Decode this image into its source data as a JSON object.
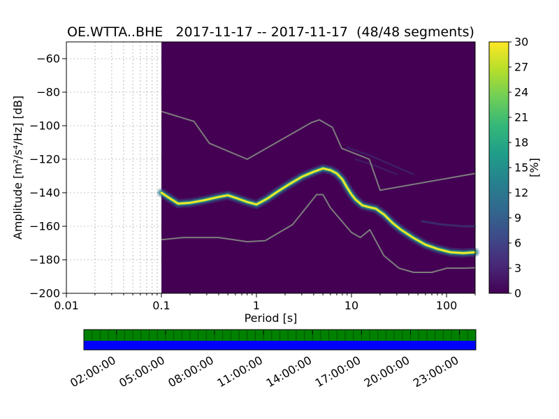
{
  "chart_data": {
    "type": "heatmap",
    "title": "OE.WTTA..BHE   2017-11-17 -- 2017-11-17  (48/48 segments)",
    "xlabel": "Period [s]",
    "ylabel": "Amplitude [m²/s⁴/Hz] [dB]",
    "x_scale": "log",
    "xlim": [
      0.01,
      200
    ],
    "ylim": [
      -200,
      -50
    ],
    "x_ticks": [
      {
        "v": 0.01,
        "label": "0.01"
      },
      {
        "v": 0.1,
        "label": "0.1"
      },
      {
        "v": 1,
        "label": "1"
      },
      {
        "v": 10,
        "label": "10"
      },
      {
        "v": 100,
        "label": "100"
      }
    ],
    "y_ticks": [
      {
        "v": -60,
        "label": "−60"
      },
      {
        "v": -80,
        "label": "−80"
      },
      {
        "v": -100,
        "label": "−100"
      },
      {
        "v": -120,
        "label": "−120"
      },
      {
        "v": -140,
        "label": "−140"
      },
      {
        "v": -160,
        "label": "−160"
      },
      {
        "v": -180,
        "label": "−180"
      },
      {
        "v": -200,
        "label": "−200"
      }
    ],
    "grid": "dashed",
    "data_start_period": 0.1,
    "zero_percent_color": "#440154",
    "noise_model_color": "#7d7d7d",
    "colorbar": {
      "label": "[%]",
      "min": 0,
      "max": 30,
      "ticks": [
        0,
        3,
        6,
        9,
        12,
        15,
        18,
        21,
        24,
        27,
        30
      ],
      "colormap": "viridis",
      "gradient": [
        "#440154",
        "#482878",
        "#3e4a89",
        "#31688e",
        "#26828e",
        "#1f9e89",
        "#35b779",
        "#6ece58",
        "#b5de2b",
        "#fde725"
      ]
    },
    "noise_models": {
      "high": {
        "periods": [
          0.1,
          0.22,
          0.32,
          0.8,
          3.8,
          4.6,
          6.3,
          7.9,
          15.4,
          20,
          200
        ],
        "db": [
          -91.5,
          -97.4,
          -110.5,
          -120.0,
          -98.1,
          -96.5,
          -101.0,
          -113.5,
          -120.0,
          -138.5,
          -128.5
        ]
      },
      "low": {
        "periods": [
          0.1,
          0.17,
          0.4,
          0.8,
          1.24,
          2.4,
          4.3,
          5.0,
          6.0,
          10,
          12.4,
          15.6,
          21.9,
          31.6,
          45,
          70,
          101,
          154,
          200
        ],
        "db": [
          -168.0,
          -166.7,
          -166.7,
          -169.2,
          -168.6,
          -159.0,
          -141.1,
          -141.1,
          -149.0,
          -163.7,
          -166.7,
          -162.1,
          -177.5,
          -185.0,
          -187.5,
          -187.5,
          -185.0,
          -185.0,
          -184.8
        ]
      }
    },
    "psd_mode_ridge": {
      "periods": [
        0.1,
        0.12,
        0.15,
        0.2,
        0.28,
        0.4,
        0.5,
        0.6,
        0.8,
        1.0,
        1.3,
        1.7,
        2.2,
        3.0,
        4.0,
        5.0,
        6.0,
        7.0,
        8.0,
        9.0,
        10,
        11,
        13,
        15,
        18,
        22,
        27,
        33,
        45,
        60,
        80,
        110,
        150,
        200
      ],
      "db": [
        -140,
        -143,
        -146.5,
        -146,
        -144.5,
        -142.5,
        -141.5,
        -143,
        -145.5,
        -147,
        -143.5,
        -139,
        -135,
        -130.5,
        -127.5,
        -125.5,
        -126.5,
        -128.5,
        -132,
        -137,
        -141,
        -144,
        -147.5,
        -148.5,
        -149.5,
        -153,
        -158,
        -162,
        -167,
        -171,
        -173.5,
        -175.5,
        -176,
        -175.5
      ]
    },
    "faint_traces": [
      {
        "periods": [
          9,
          16,
          28,
          45
        ],
        "db": [
          -113,
          -118,
          -124,
          -129
        ]
      },
      {
        "periods": [
          11,
          18,
          30
        ],
        "db": [
          -120,
          -124,
          -129
        ]
      },
      {
        "periods": [
          55,
          90,
          150,
          200
        ],
        "db": [
          -157,
          -159,
          -160,
          -160
        ]
      }
    ],
    "availability": {
      "segments": 48,
      "hours_span": 24,
      "coverage_color": "#008000",
      "extent_color": "#0000ff",
      "time_ticks": [
        {
          "hour": 2,
          "label": "02:00:00"
        },
        {
          "hour": 5,
          "label": "05:00:00"
        },
        {
          "hour": 8,
          "label": "08:00:00"
        },
        {
          "hour": 11,
          "label": "11:00:00"
        },
        {
          "hour": 14,
          "label": "14:00:00"
        },
        {
          "hour": 17,
          "label": "17:00:00"
        },
        {
          "hour": 20,
          "label": "20:00:00"
        },
        {
          "hour": 23,
          "label": "23:00:00"
        }
      ]
    }
  }
}
